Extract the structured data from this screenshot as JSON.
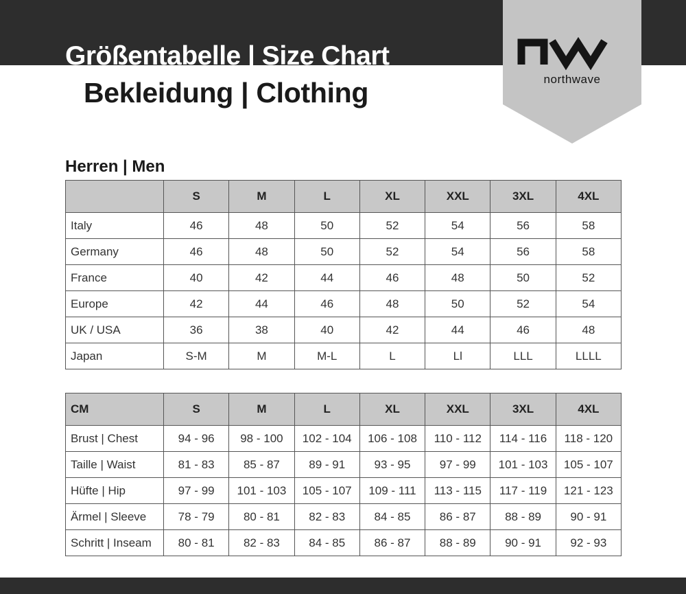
{
  "header": {
    "title": "Größentabelle | Size Chart",
    "subtitle": "Bekleidung | Clothing"
  },
  "logo": {
    "brand": "northwave",
    "mark": "nw"
  },
  "colors": {
    "band": "#2d2d2d",
    "logo_banner": "#c4c4c4",
    "table_header": "#c8c8c8"
  },
  "section": {
    "title": "Herren | Men"
  },
  "sizes": [
    "S",
    "M",
    "L",
    "XL",
    "XXL",
    "3XL",
    "4XL"
  ],
  "conversion_table": {
    "corner": "",
    "rows": [
      {
        "label": "Italy",
        "values": [
          "46",
          "48",
          "50",
          "52",
          "54",
          "56",
          "58"
        ]
      },
      {
        "label": "Germany",
        "values": [
          "46",
          "48",
          "50",
          "52",
          "54",
          "56",
          "58"
        ]
      },
      {
        "label": "France",
        "values": [
          "40",
          "42",
          "44",
          "46",
          "48",
          "50",
          "52"
        ]
      },
      {
        "label": "Europe",
        "values": [
          "42",
          "44",
          "46",
          "48",
          "50",
          "52",
          "54"
        ]
      },
      {
        "label": "UK / USA",
        "values": [
          "36",
          "38",
          "40",
          "42",
          "44",
          "46",
          "48"
        ]
      },
      {
        "label": "Japan",
        "values": [
          "S-M",
          "M",
          "M-L",
          "L",
          "Ll",
          "LLL",
          "LLLL"
        ]
      }
    ]
  },
  "measure_table": {
    "corner": "CM",
    "rows": [
      {
        "label": "Brust | Chest",
        "values": [
          "94 - 96",
          "98 - 100",
          "102 - 104",
          "106 - 108",
          "110 - 112",
          "114 - 116",
          "118 - 120"
        ]
      },
      {
        "label": "Taille | Waist",
        "values": [
          "81 - 83",
          "85 - 87",
          "89 - 91",
          "93 - 95",
          "97 - 99",
          "101 - 103",
          "105 - 107"
        ]
      },
      {
        "label": "Hüfte | Hip",
        "values": [
          "97 - 99",
          "101 - 103",
          "105 - 107",
          "109 - 111",
          "113 - 115",
          "117 - 119",
          "121 - 123"
        ]
      },
      {
        "label": "Ärmel | Sleeve",
        "values": [
          "78 - 79",
          "80 - 81",
          "82 - 83",
          "84 - 85",
          "86 - 87",
          "88 - 89",
          "90 - 91"
        ]
      },
      {
        "label": "Schritt | Inseam",
        "values": [
          "80 - 81",
          "82 - 83",
          "84 - 85",
          "86 - 87",
          "88 - 89",
          "90 - 91",
          "92 - 93"
        ]
      }
    ]
  }
}
